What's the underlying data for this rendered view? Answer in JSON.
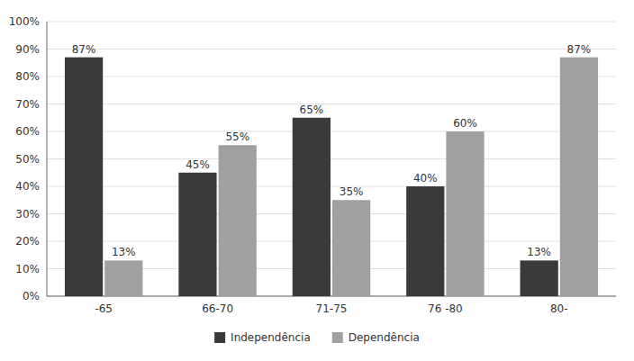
{
  "chart_data": {
    "type": "bar",
    "categories": [
      "-65",
      "66-70",
      "71-75",
      "76 -80",
      "80-"
    ],
    "series": [
      {
        "name": "Independência",
        "color": "#3a3a3a",
        "values": [
          87,
          45,
          65,
          40,
          13
        ],
        "value_labels": [
          "87%",
          "45%",
          "65%",
          "40%",
          "13%"
        ]
      },
      {
        "name": "Dependência",
        "color": "#a0a0a0",
        "values": [
          13,
          55,
          35,
          60,
          87
        ],
        "value_labels": [
          "13%",
          "55%",
          "35%",
          "60%",
          "87%"
        ]
      }
    ],
    "ylim": [
      0,
      100
    ],
    "yticks": [
      {
        "value": 0,
        "label": "0%"
      },
      {
        "value": 10,
        "label": "10%"
      },
      {
        "value": 20,
        "label": "20%"
      },
      {
        "value": 30,
        "label": "30%"
      },
      {
        "value": 40,
        "label": "40%"
      },
      {
        "value": 50,
        "label": "50%"
      },
      {
        "value": 60,
        "label": "60%"
      },
      {
        "value": 70,
        "label": "70%"
      },
      {
        "value": 80,
        "label": "80%"
      },
      {
        "value": 90,
        "label": "90%"
      },
      {
        "value": 100,
        "label": "100%"
      }
    ],
    "grid": true,
    "legend": "bottom",
    "data_labels": true
  }
}
